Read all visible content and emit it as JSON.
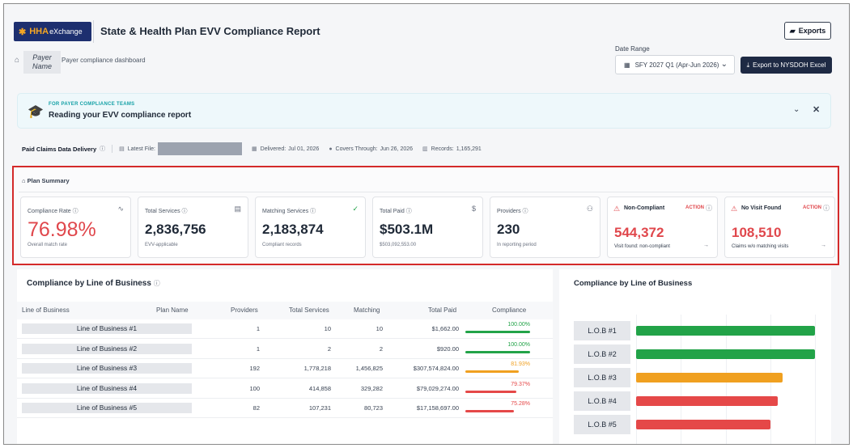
{
  "header": {
    "logo_primary": "HHA",
    "logo_secondary": "eXchange",
    "title": "State & Health Plan EVV Compliance Report",
    "exports_label": "Exports"
  },
  "breadcrumb": {
    "payer_name": "Payer Name",
    "page": "Payer compliance dashboard"
  },
  "date_range": {
    "label": "Date Range",
    "value": "SFY 2027 Q1 (Apr-Jun 2026)",
    "export_label": "Export to NYSDOH Excel"
  },
  "banner": {
    "kicker": "FOR PAYER COMPLIANCE TEAMS",
    "title": "Reading your EVV compliance report"
  },
  "delivery": {
    "title": "Paid Claims Data Delivery",
    "latest_file_label": "Latest File:",
    "delivered_label": "Delivered:",
    "delivered_value": "Jul 01, 2026",
    "covers_label": "Covers Through:",
    "covers_value": "Jun 26, 2026",
    "records_label": "Records:",
    "records_value": "1,165,291"
  },
  "plan_summary": {
    "title": "Plan Summary",
    "cards": [
      {
        "label": "Compliance Rate",
        "value": "76.98%",
        "sub": "Overall match rate"
      },
      {
        "label": "Total Services",
        "value": "2,836,756",
        "sub": "EVV-applicable"
      },
      {
        "label": "Matching Services",
        "value": "2,183,874",
        "sub": "Compliant records"
      },
      {
        "label": "Total Paid",
        "value": "$503.1M",
        "sub": "$503,092,553.00"
      },
      {
        "label": "Providers",
        "value": "230",
        "sub": "In reporting period"
      },
      {
        "label": "Non-Compliant",
        "value": "544,372",
        "sub": "Visit found: non-compliant",
        "badge": "ACTION"
      },
      {
        "label": "No Visit Found",
        "value": "108,510",
        "sub": "Claims w/o matching visits",
        "badge": "ACTION"
      }
    ]
  },
  "table": {
    "title": "Compliance by Line of Business",
    "columns": [
      "Line of Business",
      "Plan Name",
      "Providers",
      "Total Services",
      "Matching",
      "Total Paid",
      "Compliance"
    ],
    "rows": [
      {
        "lob": "Line of Business #1",
        "providers": "1",
        "services": "10",
        "matching": "10",
        "paid": "$1,662.00",
        "compliance": "100.00%"
      },
      {
        "lob": "Line of Business #2",
        "providers": "1",
        "services": "2",
        "matching": "2",
        "paid": "$920.00",
        "compliance": "100.00%"
      },
      {
        "lob": "Line of Business #3",
        "providers": "192",
        "services": "1,778,218",
        "matching": "1,456,825",
        "paid": "$307,574,824.00",
        "compliance": "81.93%"
      },
      {
        "lob": "Line of Business #4",
        "providers": "100",
        "services": "414,858",
        "matching": "329,282",
        "paid": "$79,029,274.00",
        "compliance": "79.37%"
      },
      {
        "lob": "Line of Business #5",
        "providers": "82",
        "services": "107,231",
        "matching": "80,723",
        "paid": "$17,158,697.00",
        "compliance": "75.28%"
      }
    ]
  },
  "colors": {
    "accent_red": "#e0474c",
    "green": "#22a348",
    "orange": "#f0a020",
    "red_bar": "#e54848",
    "navy": "#1e2a44",
    "teal": "#14a1a6"
  },
  "chart_data": {
    "type": "bar",
    "orientation": "horizontal",
    "title": "Compliance by Line of Business",
    "categories": [
      "L.O.B #1",
      "L.O.B #2",
      "L.O.B #3",
      "L.O.B #4",
      "L.O.B #5"
    ],
    "values": [
      100.0,
      100.0,
      81.93,
      79.37,
      75.28
    ],
    "bar_colors": [
      "#22a348",
      "#22a348",
      "#f0a020",
      "#e54848",
      "#e54848"
    ],
    "xlim": [
      0,
      100
    ],
    "grid": true
  }
}
